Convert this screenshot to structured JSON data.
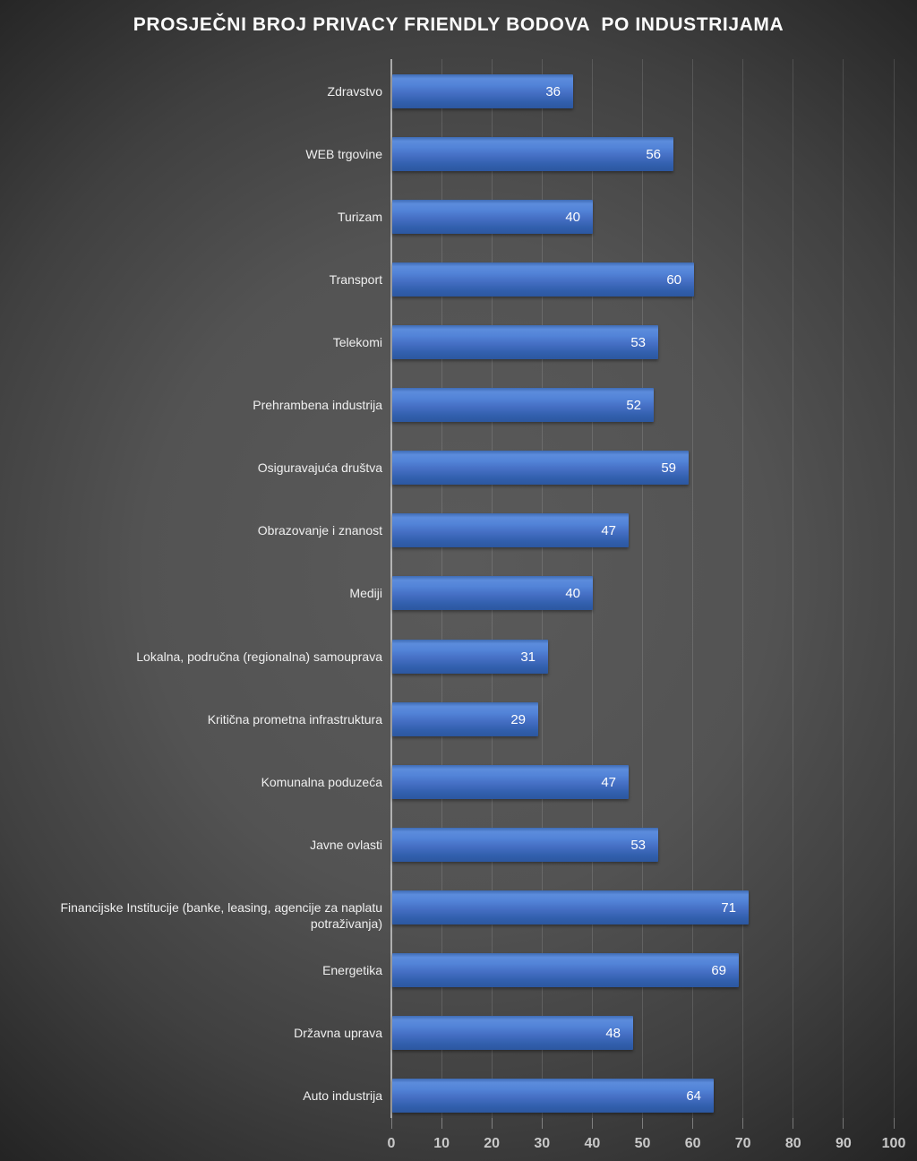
{
  "title": "PROSJEČNI BROJ PRIVACY FRIENDLY BODOVA  PO INDUSTRIJAMA",
  "chart_data": {
    "type": "bar",
    "orientation": "horizontal",
    "title": "PROSJEČNI BROJ PRIVACY FRIENDLY BODOVA  PO INDUSTRIJAMA",
    "categories": [
      "Zdravstvo",
      "WEB trgovine",
      "Turizam",
      "Transport",
      "Telekomi",
      "Prehrambena industrija",
      "Osiguravajuća društva",
      "Obrazovanje i znanost",
      "Mediji",
      "Lokalna, područna (regionalna) samouprava",
      "Kritična prometna infrastruktura",
      "Komunalna poduzeća",
      "Javne ovlasti",
      "Financijske Institucije (banke, leasing, agencije za naplatu potraživanja)",
      "Energetika",
      "Državna uprava",
      "Auto industrija"
    ],
    "values": [
      36,
      56,
      40,
      60,
      53,
      52,
      59,
      47,
      40,
      31,
      29,
      47,
      53,
      71,
      69,
      48,
      64
    ],
    "xlabel": "",
    "ylabel": "",
    "xlim": [
      0,
      100
    ],
    "xticks": [
      0,
      10,
      20,
      30,
      40,
      50,
      60,
      70,
      80,
      90,
      100
    ],
    "grid": "vertical",
    "legend": "none",
    "colors": {
      "bar_top": "#5c8cdc",
      "bar_bottom": "#2c57a0",
      "value_label": "#ffffff",
      "category_label": "#efefef",
      "tick_label": "#c9c9c9",
      "gridline": "rgba(255,255,255,0.13)",
      "background_center": "#5a5a5a",
      "background_edge": "#161616"
    }
  }
}
